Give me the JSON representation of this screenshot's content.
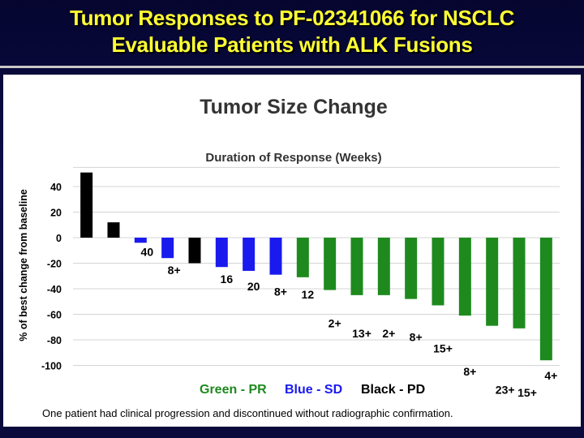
{
  "slide": {
    "title_line1": "Tumor Responses to PF-02341066 for NSCLC",
    "title_line2": "Evaluable Patients with ALK Fusions",
    "footnote": "One patient had clinical progression and discontinued without radiographic confirmation."
  },
  "colors": {
    "title": "#ffff33",
    "background": "#0b0b3a",
    "PR": "#1e8a1e",
    "SD": "#1a1aee",
    "PD": "#000000"
  },
  "chart_data": {
    "type": "bar",
    "title": "Tumor Size Change",
    "subtitle": "Duration of Response (Weeks)",
    "ylabel": "% of best change from baseline",
    "xlabel": "",
    "ylim": [
      -100,
      50
    ],
    "yticks": [
      "40",
      "20",
      "0",
      "-20",
      "-40",
      "-60",
      "-80",
      "-100"
    ],
    "ytick_values": [
      40,
      20,
      0,
      -20,
      -40,
      -60,
      -80,
      -100
    ],
    "grid": true,
    "legend_position": "bottom",
    "legend": [
      {
        "label": "Green - PR",
        "category": "PR"
      },
      {
        "label": "Blue - SD",
        "category": "SD"
      },
      {
        "label": "Black - PD",
        "category": "PD"
      }
    ],
    "bars": [
      {
        "value": 51,
        "category": "PD",
        "duration": ""
      },
      {
        "value": 12,
        "category": "PD",
        "duration": ""
      },
      {
        "value": -4,
        "category": "SD",
        "duration": "40"
      },
      {
        "value": -16,
        "category": "SD",
        "duration": "8+"
      },
      {
        "value": -20,
        "category": "PD",
        "duration": ""
      },
      {
        "value": -23,
        "category": "SD",
        "duration": "16"
      },
      {
        "value": -26,
        "category": "SD",
        "duration": "20"
      },
      {
        "value": -29,
        "category": "SD",
        "duration": "8+"
      },
      {
        "value": -31,
        "category": "PR",
        "duration": "12"
      },
      {
        "value": -41,
        "category": "PR",
        "duration": "2+"
      },
      {
        "value": -45,
        "category": "PR",
        "duration": "13+"
      },
      {
        "value": -45,
        "category": "PR",
        "duration": "2+"
      },
      {
        "value": -48,
        "category": "PR",
        "duration": "8+"
      },
      {
        "value": -53,
        "category": "PR",
        "duration": "15+"
      },
      {
        "value": -61,
        "category": "PR",
        "duration": "8+"
      },
      {
        "value": -69,
        "category": "PR",
        "duration": "23+"
      },
      {
        "value": -71,
        "category": "PR",
        "duration": "15+"
      },
      {
        "value": -96,
        "category": "PR",
        "duration": "4+"
      }
    ]
  }
}
